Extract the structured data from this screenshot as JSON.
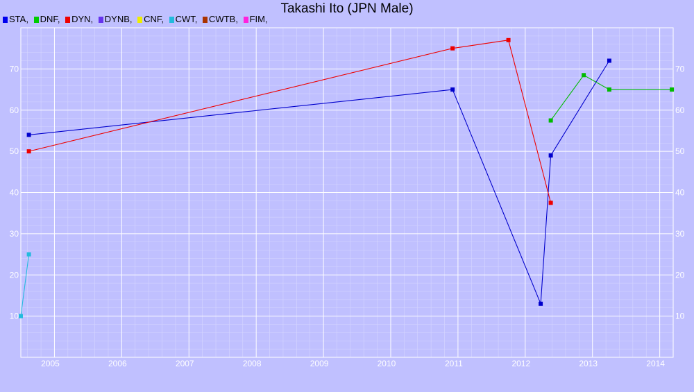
{
  "chart_data": {
    "type": "line",
    "title": "Takashi Ito (JPN Male)",
    "xlabel": "",
    "ylabel": "",
    "xlim": [
      2004.5,
      2014.2
    ],
    "ylim": [
      0,
      80
    ],
    "x_ticks": [
      "2005",
      "2006",
      "2007",
      "2008",
      "2009",
      "2010",
      "2011",
      "2012",
      "2013",
      "2014"
    ],
    "y_ticks": [
      "10",
      "20",
      "30",
      "40",
      "50",
      "60",
      "70"
    ],
    "grid": true,
    "legend_position": "top-left",
    "legend": [
      {
        "label": "STA,",
        "color": "#0000ee"
      },
      {
        "label": "DNF,",
        "color": "#00cc00"
      },
      {
        "label": "DYN,",
        "color": "#ee0000"
      },
      {
        "label": "DYNB,",
        "color": "#6633ee"
      },
      {
        "label": "CNF,",
        "color": "#eeee00"
      },
      {
        "label": "CWT,",
        "color": "#22bbdd"
      },
      {
        "label": "CWTB,",
        "color": "#aa3300"
      },
      {
        "label": "FIM,",
        "color": "#ff22dd"
      }
    ],
    "series": [
      {
        "key": "STA",
        "color": "#0000cc",
        "points": [
          [
            2004.62,
            54
          ],
          [
            2010.92,
            65
          ],
          [
            2012.23,
            13
          ],
          [
            2012.38,
            49
          ],
          [
            2013.25,
            72
          ]
        ]
      },
      {
        "key": "DNF",
        "color": "#00bb00",
        "points": [
          [
            2012.38,
            57.5
          ],
          [
            2012.87,
            68.5
          ],
          [
            2013.25,
            65
          ],
          [
            2014.18,
            65
          ]
        ]
      },
      {
        "key": "DYN",
        "color": "#ee0000",
        "points": [
          [
            2004.62,
            50
          ],
          [
            2010.92,
            75
          ],
          [
            2011.75,
            77
          ],
          [
            2012.38,
            37.5
          ]
        ]
      },
      {
        "key": "CWT",
        "color": "#22bbdd",
        "points": [
          [
            2004.5,
            10
          ],
          [
            2004.62,
            25
          ]
        ]
      }
    ]
  }
}
